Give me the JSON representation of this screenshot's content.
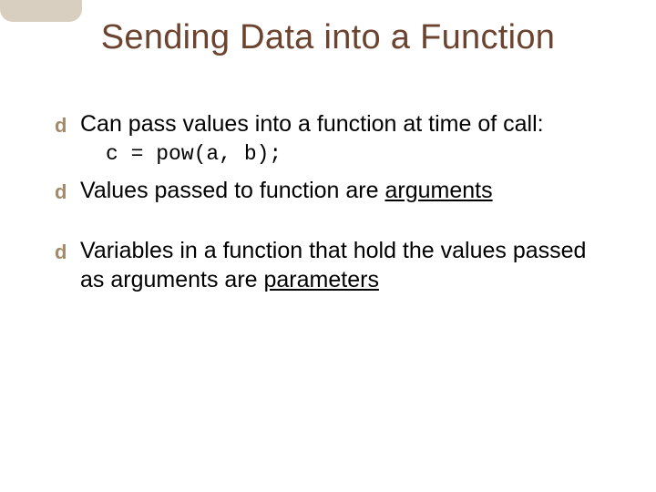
{
  "slide": {
    "title": "Sending Data into a Function",
    "title_color": "#6b432f",
    "title_fontsize": 38,
    "banner_color": "#d9cfc0",
    "bullet_glyph": "d",
    "bullet_color": "#a28b6a",
    "background_color": "#ffffff",
    "body_fontsize": 25,
    "code_font": "Courier New",
    "body_color": "#000000",
    "items": [
      {
        "pre": "Can pass values into a function at time of call:",
        "code": "c = pow(a, b);"
      },
      {
        "pre": "Values passed to function are ",
        "underline": "arguments"
      },
      {
        "pre": "Variables in a function that hold the values passed as arguments are ",
        "underline": "parameters"
      }
    ]
  }
}
